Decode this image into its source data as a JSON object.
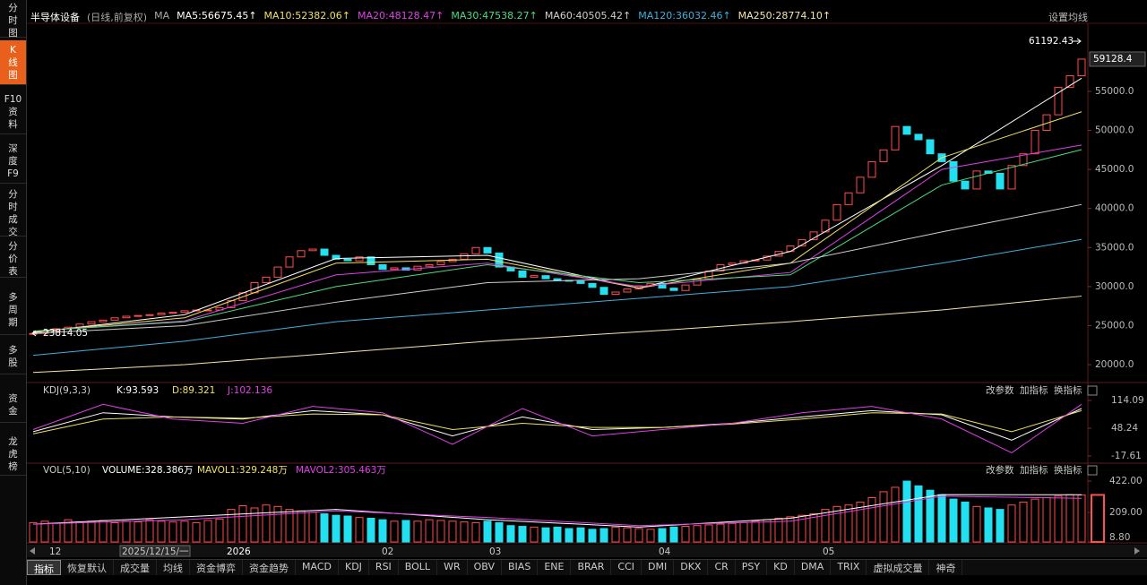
{
  "header": {
    "title": "半导体设备",
    "subtitle": "(日线,前复权)",
    "ma": "MA",
    "ma_labels": [
      "MA5:56675.45↑",
      "MA10:52382.06↑",
      "MA20:48128.47↑",
      "MA30:47538.27↑",
      "MA60:40505.42↑",
      "MA120:36032.46↑",
      "MA250:28774.10↑"
    ],
    "settings": "设置均线"
  },
  "sidebar": [
    [
      "分",
      "时",
      "图"
    ],
    [
      "K",
      "线",
      "图"
    ],
    [
      "F10",
      "资",
      "料"
    ],
    [
      "深",
      "度",
      "F9"
    ],
    [
      "分",
      "时",
      "成",
      "交"
    ],
    [
      "分",
      "价",
      "表"
    ],
    [
      "多",
      "周",
      "期"
    ],
    [
      "多",
      "股"
    ],
    [
      "资",
      "金"
    ],
    [
      "龙",
      "虎",
      "榜"
    ]
  ],
  "price_panel": {
    "ylim": [
      17940,
      63600
    ],
    "yticks": [
      {
        "value": 20000,
        "label": "20000.0"
      },
      {
        "value": 25000,
        "label": "25000.0"
      },
      {
        "value": 30000,
        "label": "30000.0"
      },
      {
        "value": 35000,
        "label": "35000.0"
      },
      {
        "value": 40000,
        "label": "40000.0"
      },
      {
        "value": 45000,
        "label": "45000.0"
      },
      {
        "value": 50000,
        "label": "50000.0"
      },
      {
        "value": 55000,
        "label": "55000.0"
      }
    ],
    "last_label": "59128.4",
    "high_label": "61192.43",
    "low_label": "23814.05",
    "closes": [
      24000,
      24300,
      24600,
      24800,
      25200,
      25500,
      25700,
      26000,
      26200,
      26300,
      26400,
      26600,
      26700,
      26900,
      27000,
      27000,
      27300,
      28200,
      29200,
      30500,
      31200,
      32500,
      33800,
      34600,
      34800,
      34000,
      33500,
      33300,
      33800,
      32800,
      32200,
      32400,
      32100,
      32600,
      32800,
      33200,
      33500,
      34200,
      35000,
      34300,
      32500,
      32000,
      31200,
      31400,
      31000,
      30800,
      30700,
      30400,
      29900,
      29000,
      29300,
      29700,
      30100,
      30400,
      29800,
      29500,
      30200,
      31000,
      32000,
      32800,
      33000,
      33300,
      33400,
      33900,
      34500,
      35200,
      36000,
      37000,
      38500,
      40500,
      42000,
      44000,
      46000,
      47500,
      50500,
      49500,
      48800,
      47000,
      46000,
      43500,
      42500,
      44800,
      44500,
      42500,
      45500,
      47000,
      50000,
      52000,
      55500,
      57000,
      59128.4
    ],
    "up_color": "#ff4d4f",
    "down_color": "#22e0f0",
    "ma_lines": [
      {
        "color": "#ffffff",
        "x": [
          0,
          13,
          26,
          39,
          52,
          65,
          78,
          90
        ],
        "values": [
          24100,
          26400,
          33600,
          34000,
          29800,
          34500,
          45500,
          56675.45
        ]
      },
      {
        "color": "#f0e060",
        "x": [
          0,
          13,
          26,
          39,
          52,
          65,
          78,
          90
        ],
        "values": [
          24200,
          26000,
          33000,
          33500,
          29800,
          33000,
          46500,
          52382.06
        ]
      },
      {
        "color": "#e040e8",
        "x": [
          0,
          13,
          26,
          39,
          52,
          65,
          78,
          90
        ],
        "values": [
          24300,
          25600,
          31500,
          33000,
          30000,
          31800,
          45000,
          48128.47
        ]
      },
      {
        "color": "#4ade80",
        "x": [
          0,
          13,
          26,
          39,
          52,
          65,
          78,
          90
        ],
        "values": [
          24300,
          25500,
          30000,
          32800,
          30500,
          31500,
          43000,
          47538.27
        ]
      },
      {
        "color": "#cfcfcf",
        "x": [
          0,
          13,
          26,
          39,
          52,
          65,
          78,
          90
        ],
        "values": [
          24000,
          25000,
          28000,
          30500,
          31000,
          33000,
          37000,
          40505.42
        ]
      },
      {
        "color": "#3fb0e0",
        "x": [
          0,
          13,
          26,
          39,
          52,
          65,
          78,
          90
        ],
        "values": [
          21200,
          23000,
          25500,
          27000,
          28500,
          30000,
          33000,
          36032.46
        ]
      },
      {
        "color": "#f5e6a8",
        "x": [
          0,
          13,
          26,
          39,
          52,
          65,
          78,
          90
        ],
        "values": [
          19000,
          20000,
          21500,
          23000,
          24200,
          25500,
          27000,
          28774.1
        ]
      }
    ]
  },
  "kdj_panel": {
    "name": "KDJ(9,3,3)",
    "labels": [
      "K:93.593",
      "D:89.321",
      "J:102.136"
    ],
    "actions": [
      "改参数",
      "加指标",
      "换指标"
    ],
    "ylim": [
      -32.5,
      122.6
    ],
    "yticks": [
      114.09,
      48.24,
      -17.61
    ],
    "series": [
      {
        "color": "#ffffff",
        "x": [
          0,
          6,
          12,
          18,
          24,
          30,
          36,
          42,
          48,
          54,
          60,
          66,
          72,
          78,
          84,
          90
        ],
        "values": [
          40,
          85,
          75,
          70,
          90,
          80,
          30,
          75,
          45,
          50,
          60,
          75,
          90,
          80,
          20,
          95
        ]
      },
      {
        "color": "#f0e060",
        "x": [
          0,
          6,
          12,
          18,
          24,
          30,
          36,
          42,
          48,
          54,
          60,
          66,
          72,
          78,
          84,
          90
        ],
        "values": [
          35,
          70,
          75,
          72,
          82,
          80,
          45,
          60,
          50,
          50,
          58,
          70,
          85,
          82,
          40,
          90
        ]
      },
      {
        "color": "#e040e8",
        "x": [
          0,
          6,
          12,
          18,
          24,
          30,
          36,
          42,
          48,
          54,
          60,
          66,
          72,
          78,
          84,
          90
        ],
        "values": [
          45,
          105,
          70,
          60,
          100,
          85,
          10,
          95,
          30,
          45,
          60,
          85,
          100,
          70,
          -10,
          105
        ]
      }
    ]
  },
  "vol_panel": {
    "name": "VOL(5,10)",
    "labels": [
      "VOLUME:328.386万",
      "MAVOL1:329.248万",
      "MAVOL2:305.463万"
    ],
    "actions": [
      "改参数",
      "加指标",
      "换指标"
    ],
    "ylim": [
      8.8,
      477
    ],
    "yticks": [
      {
        "value": 422,
        "label": "422.00"
      },
      {
        "value": 209,
        "label": "209.00"
      },
      {
        "value": 8.8,
        "label": "8.80"
      }
    ],
    "volumes": [
      140,
      150,
      135,
      160,
      145,
      150,
      155,
      140,
      150,
      145,
      160,
      150,
      145,
      150,
      140,
      155,
      165,
      230,
      255,
      240,
      260,
      250,
      230,
      220,
      210,
      200,
      190,
      185,
      175,
      170,
      160,
      150,
      155,
      150,
      160,
      155,
      150,
      145,
      140,
      150,
      140,
      120,
      115,
      110,
      105,
      110,
      100,
      105,
      95,
      100,
      110,
      105,
      100,
      95,
      100,
      110,
      115,
      120,
      125,
      130,
      135,
      140,
      150,
      160,
      170,
      180,
      190,
      200,
      230,
      250,
      260,
      280,
      310,
      350,
      380,
      422,
      390,
      360,
      330,
      300,
      280,
      250,
      240,
      230,
      260,
      280,
      300,
      310,
      320,
      330,
      328.386
    ],
    "series": [
      {
        "color": "#ffffff",
        "x": [
          0,
          13,
          26,
          39,
          52,
          65,
          78,
          90
        ],
        "values": [
          130,
          180,
          230,
          160,
          110,
          170,
          330,
          329.248
        ]
      },
      {
        "color": "#e040e8",
        "x": [
          0,
          13,
          26,
          39,
          52,
          65,
          78,
          90
        ],
        "values": [
          130,
          160,
          220,
          175,
          120,
          150,
          320,
          305.463
        ]
      }
    ]
  },
  "x_labels": [
    "12",
    "2025/12/15/一",
    "2026",
    "02",
    "03",
    "04",
    "05"
  ],
  "tabs": [
    "指标",
    "恢复默认",
    "成交量",
    "均线",
    "资金博弈",
    "资金趋势",
    "MACD",
    "KDJ",
    "RSI",
    "BOLL",
    "WR",
    "OBV",
    "BIAS",
    "ENE",
    "BRAR",
    "CCI",
    "DMI",
    "DKX",
    "CR",
    "PSY",
    "KD",
    "DMA",
    "TRIX",
    "虚拟成交量",
    "神奇"
  ]
}
